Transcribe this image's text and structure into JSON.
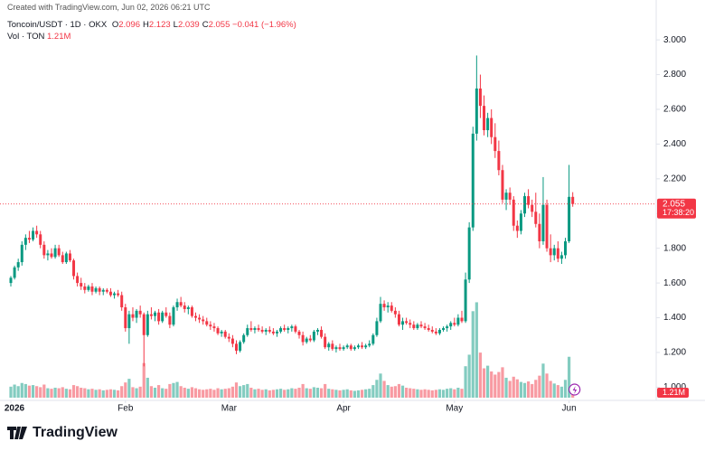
{
  "header": {
    "watermark": "Created with TradingView.com, Jun 02, 2026 06:21 UTC",
    "symbol": "Toncoin/USDT · 1D · OKX",
    "legend": [
      {
        "key": "O",
        "value": 2.096
      },
      {
        "key": "H",
        "value": 2.123
      },
      {
        "key": "L",
        "value": 2.039
      },
      {
        "key": "C",
        "value": 2.055
      }
    ],
    "change": "−0.041 (−1.96%)",
    "volume_title": "Vol · TON",
    "countdown": "17:38:20",
    "logo": "TradingView"
  },
  "chart_data": {
    "type": "candlestick",
    "candles": [
      [
        1.6,
        1.64,
        1.58,
        1.63
      ],
      [
        1.63,
        1.7,
        1.62,
        1.69
      ],
      [
        1.69,
        1.74,
        1.67,
        1.72
      ],
      [
        1.72,
        1.84,
        1.7,
        1.82
      ],
      [
        1.82,
        1.88,
        1.79,
        1.86
      ],
      [
        1.86,
        1.9,
        1.83,
        1.85
      ],
      [
        1.85,
        1.92,
        1.84,
        1.9
      ],
      [
        1.9,
        1.93,
        1.86,
        1.88
      ],
      [
        1.88,
        1.9,
        1.8,
        1.82
      ],
      [
        1.82,
        1.84,
        1.74,
        1.76
      ],
      [
        1.76,
        1.79,
        1.73,
        1.77
      ],
      [
        1.77,
        1.8,
        1.74,
        1.75
      ],
      [
        1.75,
        1.82,
        1.74,
        1.8
      ],
      [
        1.8,
        1.82,
        1.75,
        1.76
      ],
      [
        1.76,
        1.78,
        1.71,
        1.72
      ],
      [
        1.72,
        1.78,
        1.71,
        1.77
      ],
      [
        1.77,
        1.79,
        1.72,
        1.73
      ],
      [
        1.73,
        1.74,
        1.62,
        1.64
      ],
      [
        1.64,
        1.66,
        1.58,
        1.6
      ],
      [
        1.6,
        1.63,
        1.56,
        1.58
      ],
      [
        1.58,
        1.6,
        1.54,
        1.56
      ],
      [
        1.56,
        1.59,
        1.55,
        1.58
      ],
      [
        1.58,
        1.6,
        1.53,
        1.55
      ],
      [
        1.55,
        1.58,
        1.54,
        1.57
      ],
      [
        1.57,
        1.58,
        1.53,
        1.55
      ],
      [
        1.55,
        1.57,
        1.53,
        1.56
      ],
      [
        1.56,
        1.57,
        1.54,
        1.55
      ],
      [
        1.55,
        1.57,
        1.52,
        1.53
      ],
      [
        1.53,
        1.55,
        1.51,
        1.54
      ],
      [
        1.54,
        1.56,
        1.52,
        1.53
      ],
      [
        1.53,
        1.55,
        1.44,
        1.46
      ],
      [
        1.46,
        1.48,
        1.32,
        1.34
      ],
      [
        1.34,
        1.44,
        1.25,
        1.42
      ],
      [
        1.42,
        1.46,
        1.38,
        1.4
      ],
      [
        1.4,
        1.45,
        1.37,
        1.44
      ],
      [
        1.44,
        1.47,
        1.4,
        1.42
      ],
      [
        1.42,
        1.43,
        1.12,
        1.3
      ],
      [
        1.3,
        1.44,
        1.29,
        1.42
      ],
      [
        1.42,
        1.46,
        1.39,
        1.41
      ],
      [
        1.41,
        1.44,
        1.38,
        1.43
      ],
      [
        1.43,
        1.45,
        1.36,
        1.38
      ],
      [
        1.38,
        1.44,
        1.37,
        1.43
      ],
      [
        1.43,
        1.46,
        1.4,
        1.41
      ],
      [
        1.41,
        1.43,
        1.34,
        1.36
      ],
      [
        1.36,
        1.47,
        1.35,
        1.46
      ],
      [
        1.46,
        1.51,
        1.44,
        1.49
      ],
      [
        1.49,
        1.52,
        1.46,
        1.47
      ],
      [
        1.47,
        1.49,
        1.43,
        1.45
      ],
      [
        1.45,
        1.47,
        1.42,
        1.46
      ],
      [
        1.46,
        1.47,
        1.4,
        1.41
      ],
      [
        1.41,
        1.43,
        1.38,
        1.4
      ],
      [
        1.4,
        1.42,
        1.37,
        1.39
      ],
      [
        1.39,
        1.41,
        1.36,
        1.38
      ],
      [
        1.38,
        1.4,
        1.35,
        1.36
      ],
      [
        1.36,
        1.38,
        1.33,
        1.35
      ],
      [
        1.35,
        1.37,
        1.32,
        1.34
      ],
      [
        1.34,
        1.35,
        1.3,
        1.31
      ],
      [
        1.31,
        1.33,
        1.29,
        1.32
      ],
      [
        1.32,
        1.33,
        1.28,
        1.29
      ],
      [
        1.29,
        1.31,
        1.26,
        1.28
      ],
      [
        1.28,
        1.3,
        1.23,
        1.25
      ],
      [
        1.25,
        1.27,
        1.19,
        1.21
      ],
      [
        1.21,
        1.27,
        1.2,
        1.26
      ],
      [
        1.26,
        1.31,
        1.25,
        1.3
      ],
      [
        1.3,
        1.36,
        1.29,
        1.34
      ],
      [
        1.34,
        1.38,
        1.32,
        1.33
      ],
      [
        1.33,
        1.35,
        1.31,
        1.34
      ],
      [
        1.34,
        1.36,
        1.32,
        1.33
      ],
      [
        1.33,
        1.35,
        1.31,
        1.32
      ],
      [
        1.32,
        1.34,
        1.3,
        1.33
      ],
      [
        1.33,
        1.35,
        1.31,
        1.32
      ],
      [
        1.32,
        1.34,
        1.3,
        1.31
      ],
      [
        1.31,
        1.33,
        1.29,
        1.32
      ],
      [
        1.32,
        1.35,
        1.31,
        1.34
      ],
      [
        1.34,
        1.36,
        1.32,
        1.33
      ],
      [
        1.33,
        1.35,
        1.31,
        1.34
      ],
      [
        1.34,
        1.36,
        1.32,
        1.35
      ],
      [
        1.35,
        1.36,
        1.31,
        1.32
      ],
      [
        1.32,
        1.33,
        1.28,
        1.3
      ],
      [
        1.3,
        1.32,
        1.24,
        1.26
      ],
      [
        1.26,
        1.29,
        1.25,
        1.28
      ],
      [
        1.28,
        1.3,
        1.26,
        1.27
      ],
      [
        1.27,
        1.33,
        1.26,
        1.32
      ],
      [
        1.32,
        1.34,
        1.3,
        1.33
      ],
      [
        1.33,
        1.35,
        1.28,
        1.29
      ],
      [
        1.29,
        1.31,
        1.22,
        1.23
      ],
      [
        1.23,
        1.26,
        1.21,
        1.25
      ],
      [
        1.25,
        1.27,
        1.21,
        1.22
      ],
      [
        1.22,
        1.24,
        1.2,
        1.23
      ],
      [
        1.23,
        1.25,
        1.21,
        1.22
      ],
      [
        1.22,
        1.24,
        1.21,
        1.23
      ],
      [
        1.23,
        1.25,
        1.22,
        1.24
      ],
      [
        1.24,
        1.25,
        1.21,
        1.22
      ],
      [
        1.22,
        1.24,
        1.21,
        1.23
      ],
      [
        1.23,
        1.25,
        1.22,
        1.24
      ],
      [
        1.24,
        1.26,
        1.22,
        1.23
      ],
      [
        1.23,
        1.25,
        1.22,
        1.24
      ],
      [
        1.24,
        1.27,
        1.23,
        1.25
      ],
      [
        1.25,
        1.31,
        1.24,
        1.3
      ],
      [
        1.3,
        1.4,
        1.29,
        1.38
      ],
      [
        1.38,
        1.52,
        1.37,
        1.48
      ],
      [
        1.48,
        1.5,
        1.44,
        1.46
      ],
      [
        1.46,
        1.49,
        1.43,
        1.47
      ],
      [
        1.47,
        1.49,
        1.43,
        1.44
      ],
      [
        1.44,
        1.46,
        1.4,
        1.42
      ],
      [
        1.42,
        1.44,
        1.35,
        1.36
      ],
      [
        1.36,
        1.4,
        1.33,
        1.38
      ],
      [
        1.38,
        1.4,
        1.36,
        1.37
      ],
      [
        1.37,
        1.39,
        1.34,
        1.36
      ],
      [
        1.36,
        1.38,
        1.33,
        1.34
      ],
      [
        1.34,
        1.37,
        1.33,
        1.36
      ],
      [
        1.36,
        1.38,
        1.34,
        1.35
      ],
      [
        1.35,
        1.37,
        1.33,
        1.34
      ],
      [
        1.34,
        1.36,
        1.32,
        1.33
      ],
      [
        1.33,
        1.35,
        1.31,
        1.32
      ],
      [
        1.32,
        1.34,
        1.3,
        1.31
      ],
      [
        1.31,
        1.34,
        1.3,
        1.33
      ],
      [
        1.33,
        1.35,
        1.32,
        1.34
      ],
      [
        1.34,
        1.36,
        1.32,
        1.35
      ],
      [
        1.35,
        1.38,
        1.33,
        1.37
      ],
      [
        1.37,
        1.4,
        1.35,
        1.36
      ],
      [
        1.36,
        1.42,
        1.35,
        1.4
      ],
      [
        1.4,
        1.44,
        1.37,
        1.38
      ],
      [
        1.38,
        1.66,
        1.37,
        1.62
      ],
      [
        1.62,
        1.95,
        1.6,
        1.92
      ],
      [
        1.92,
        2.5,
        1.9,
        2.46
      ],
      [
        2.46,
        2.91,
        2.42,
        2.72
      ],
      [
        2.72,
        2.8,
        2.55,
        2.62
      ],
      [
        2.62,
        2.68,
        2.45,
        2.48
      ],
      [
        2.48,
        2.58,
        2.44,
        2.55
      ],
      [
        2.55,
        2.6,
        2.4,
        2.44
      ],
      [
        2.44,
        2.52,
        2.32,
        2.36
      ],
      [
        2.36,
        2.42,
        2.22,
        2.25
      ],
      [
        2.25,
        2.28,
        2.06,
        2.08
      ],
      [
        2.08,
        2.14,
        2.02,
        2.12
      ],
      [
        2.12,
        2.15,
        2.05,
        2.08
      ],
      [
        2.08,
        2.1,
        1.9,
        1.93
      ],
      [
        1.93,
        1.96,
        1.86,
        1.9
      ],
      [
        1.9,
        2.02,
        1.88,
        2.0
      ],
      [
        2.0,
        2.12,
        1.98,
        2.1
      ],
      [
        2.1,
        2.14,
        2.03,
        2.05
      ],
      [
        2.05,
        2.08,
        1.98,
        2.01
      ],
      [
        2.01,
        2.12,
        1.92,
        1.94
      ],
      [
        1.94,
        2.0,
        1.8,
        1.84
      ],
      [
        1.84,
        2.21,
        1.82,
        2.05
      ],
      [
        2.05,
        2.08,
        1.78,
        1.8
      ],
      [
        1.8,
        1.88,
        1.72,
        1.76
      ],
      [
        1.76,
        1.82,
        1.73,
        1.8
      ],
      [
        1.8,
        1.84,
        1.72,
        1.74
      ],
      [
        1.74,
        1.78,
        1.71,
        1.76
      ],
      [
        1.76,
        1.86,
        1.74,
        1.84
      ],
      [
        1.84,
        2.28,
        1.83,
        2.096
      ],
      [
        2.096,
        2.123,
        2.039,
        2.055
      ]
    ],
    "volumes": [
      2.1,
      2.5,
      2.2,
      2.8,
      2.6,
      2.3,
      2.4,
      2.2,
      2.0,
      2.5,
      1.8,
      1.7,
      1.9,
      1.8,
      2.0,
      1.7,
      1.6,
      2.4,
      2.2,
      1.9,
      1.8,
      1.6,
      1.7,
      1.5,
      1.6,
      1.4,
      1.5,
      1.6,
      1.5,
      1.4,
      2.2,
      2.9,
      3.6,
      2.0,
      1.8,
      2.1,
      6.6,
      3.8,
      2.2,
      1.9,
      2.4,
      1.8,
      1.7,
      2.6,
      2.8,
      3.0,
      2.2,
      1.9,
      1.7,
      2.0,
      1.8,
      1.6,
      1.5,
      1.6,
      1.7,
      1.5,
      1.8,
      1.6,
      1.7,
      1.8,
      2.1,
      2.9,
      2.2,
      2.4,
      2.6,
      1.9,
      1.6,
      1.7,
      1.5,
      1.6,
      1.4,
      1.5,
      1.6,
      1.7,
      1.5,
      1.6,
      1.8,
      1.7,
      1.9,
      2.6,
      1.8,
      1.7,
      2.0,
      1.9,
      1.8,
      2.6,
      1.7,
      1.6,
      1.5,
      1.4,
      1.5,
      1.6,
      1.4,
      1.3,
      1.4,
      1.5,
      1.6,
      1.7,
      2.4,
      3.4,
      4.6,
      3.2,
      2.4,
      2.1,
      2.2,
      2.6,
      2.3,
      1.9,
      1.8,
      1.7,
      1.6,
      1.5,
      1.6,
      1.5,
      1.4,
      1.5,
      1.6,
      1.5,
      1.7,
      1.8,
      1.6,
      1.9,
      1.7,
      6.0,
      8.2,
      16.5,
      18.2,
      8.6,
      5.6,
      6.1,
      5.0,
      4.4,
      4.9,
      5.8,
      3.8,
      3.2,
      4.0,
      3.5,
      3.0,
      2.8,
      3.1,
      2.6,
      3.4,
      4.2,
      6.5,
      4.6,
      3.2,
      2.7,
      2.4,
      2.1,
      3.4,
      7.8,
      1.21
    ],
    "volume_label": "1.21M",
    "up_color": "#089981",
    "down_color": "#f23645",
    "ylim": [
      0.924,
      3.188
    ],
    "yticks": [
      {
        "value": 1,
        "label": "1.000"
      },
      {
        "value": 1.2,
        "label": "1.200"
      },
      {
        "value": 1.4,
        "label": "1.400"
      },
      {
        "value": 1.6,
        "label": "1.600"
      },
      {
        "value": 1.8,
        "label": "1.800"
      },
      {
        "value": 2,
        "label": "2.000"
      },
      {
        "value": 2.2,
        "label": "2.200"
      },
      {
        "value": 2.4,
        "label": "2.400"
      },
      {
        "value": 2.6,
        "label": "2.600"
      },
      {
        "value": 2.8,
        "label": "2.800"
      },
      {
        "value": 3,
        "label": "3.000"
      }
    ],
    "xticks": [
      {
        "value": 0,
        "label": "2026"
      },
      {
        "value": 31,
        "label": "Feb"
      },
      {
        "value": 59,
        "label": "Mar"
      },
      {
        "value": 90,
        "label": "Apr"
      },
      {
        "value": 120,
        "label": "May"
      },
      {
        "value": 151,
        "label": "Jun"
      }
    ]
  }
}
